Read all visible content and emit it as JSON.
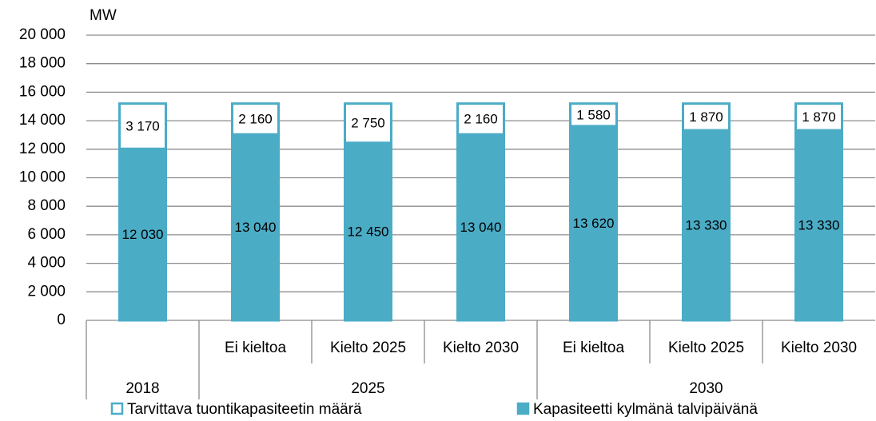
{
  "chart_data": {
    "type": "stacked_bar",
    "y_label": "MW",
    "categories": [
      null,
      "Ei kieltoa",
      "Kielto 2025",
      "Kielto 2030",
      "Ei kieltoa",
      "Kielto 2025",
      "Kielto 2030"
    ],
    "groups": [
      {
        "label": "2018",
        "count": 1
      },
      {
        "label": "2025",
        "count": 3
      },
      {
        "label": "2030",
        "count": 3
      }
    ],
    "series": [
      {
        "name": "Kapasiteetti kylmänä talvipäivänä",
        "color": "#4bacc6",
        "fill": "#4bacc6",
        "values": [
          12030,
          13040,
          12450,
          13040,
          13620,
          13330,
          13330
        ],
        "value_labels": [
          "12 030",
          "13 040",
          "12 450",
          "13 040",
          "13 620",
          "13 330",
          "13 330"
        ]
      },
      {
        "name": "Tarvittava tuontikapasiteetin määrä",
        "color": "#4bacc6",
        "fill": "#ffffff",
        "values": [
          3170,
          2160,
          2750,
          2160,
          1580,
          1870,
          1870
        ],
        "value_labels": [
          "3 170",
          "2 160",
          "2 750",
          "2 160",
          "1 580",
          "1 870",
          "1 870"
        ]
      }
    ],
    "ylim": [
      0,
      20000
    ],
    "yticks": [
      0,
      {
        "value": 2000,
        "label": "2 000"
      },
      {
        "value": 4000,
        "label": "4 000"
      },
      {
        "value": 6000,
        "label": "6 000"
      },
      {
        "value": 8000,
        "label": "8 000"
      },
      {
        "value": 10000,
        "label": "10 000"
      },
      {
        "value": 12000,
        "label": "12 000"
      },
      {
        "value": 14000,
        "label": "14 000"
      },
      {
        "value": 16000,
        "label": "16 000"
      },
      {
        "value": 18000,
        "label": "18 000"
      },
      {
        "value": 20000,
        "label": "20 000"
      }
    ],
    "grid": true
  }
}
